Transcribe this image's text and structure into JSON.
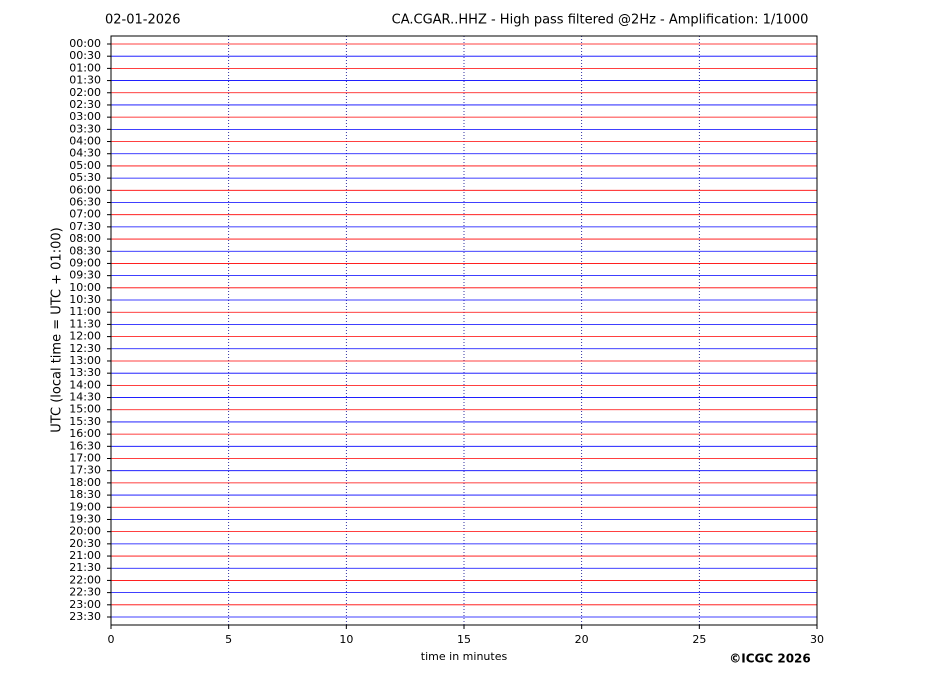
{
  "chart_data": {
    "type": "helicorder",
    "date": "02-01-2026",
    "title": "CA.CGAR..HHZ - High pass filtered @2Hz - Amplification: 1/1000",
    "ylabel": "UTC (local time = UTC + 01:00)",
    "xlabel": "time in minutes",
    "copyright": "©ICGC 2026",
    "categories": [
      "00:00",
      "00:30",
      "01:00",
      "01:30",
      "02:00",
      "02:30",
      "03:00",
      "03:30",
      "04:00",
      "04:30",
      "05:00",
      "05:30",
      "06:00",
      "06:30",
      "07:00",
      "07:30",
      "08:00",
      "08:30",
      "09:00",
      "09:30",
      "10:00",
      "10:30",
      "11:00",
      "11:30",
      "12:00",
      "12:30",
      "13:00",
      "13:30",
      "14:00",
      "14:30",
      "15:00",
      "15:30",
      "16:00",
      "16:30",
      "17:00",
      "17:30",
      "18:00",
      "18:30",
      "19:00",
      "19:30",
      "20:00",
      "20:30",
      "21:00",
      "21:30",
      "22:00",
      "22:30",
      "23:00",
      "23:30"
    ],
    "trace_colors": [
      "#ff0000",
      "#0000ff"
    ],
    "xlim": [
      0,
      30
    ],
    "xticks": [
      0,
      5,
      10,
      15,
      20,
      25,
      30
    ],
    "grid": true
  }
}
